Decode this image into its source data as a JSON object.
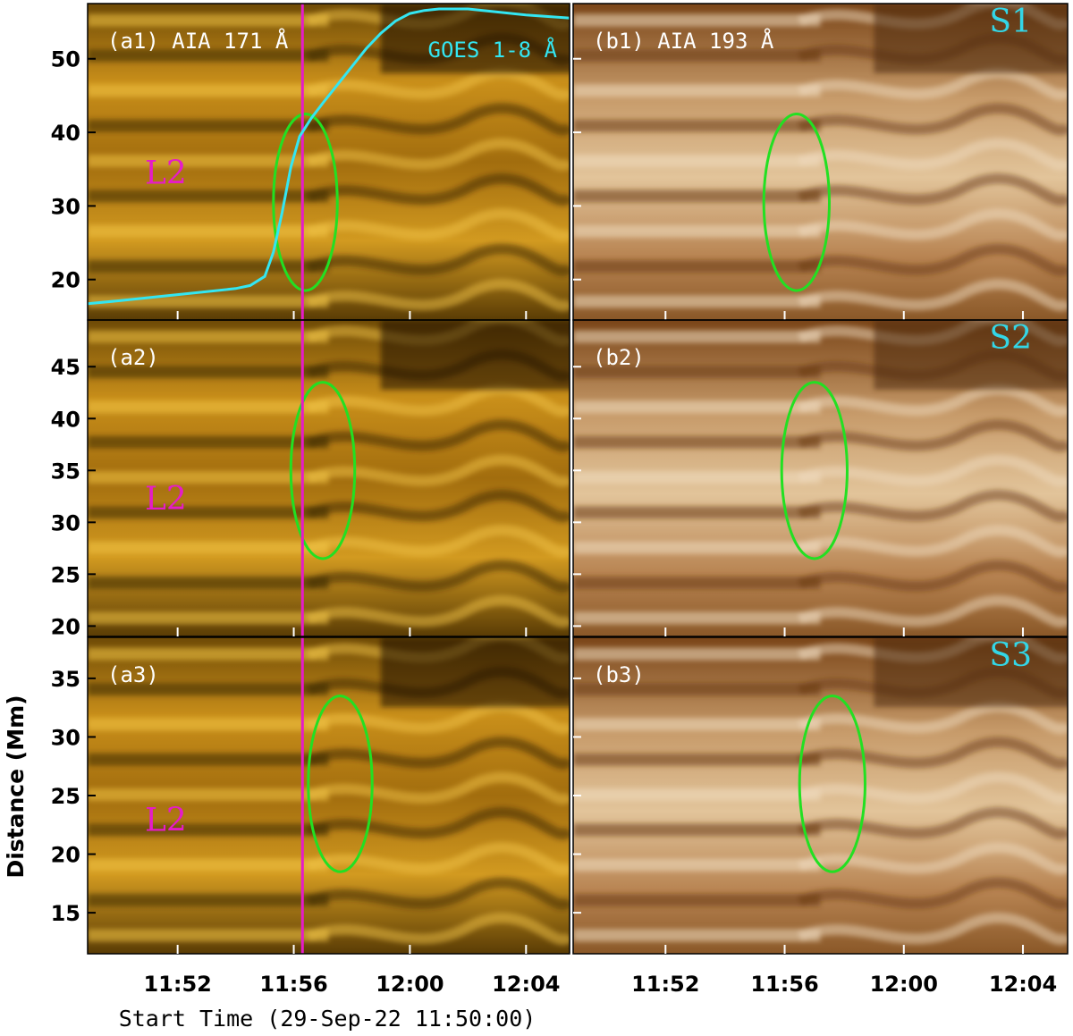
{
  "chart_data": {
    "type": "heatmap",
    "x_axis": {
      "title": "Start Time (29-Sep-22 11:50:00)",
      "ticks": [
        "11:52",
        "11:56",
        "12:00",
        "12:04"
      ],
      "tick_minutes": [
        2,
        6,
        10,
        14
      ],
      "range_minutes": [
        -1.1,
        15.5
      ]
    },
    "y_axis": {
      "title": "Distance (Mm)"
    },
    "event_line_minutes": 6.3,
    "colors": {
      "event_line": "#e51cc8",
      "goes_curve": "#33e6f2",
      "ellipse": "#22e022",
      "label_l2": "#e51cc8",
      "label_s": "#33d6e6",
      "panel_label": "#ffffff"
    },
    "panels": [
      {
        "label": "(a1) AIA 171 Å",
        "channel": "AIA 171 Å",
        "col": 0,
        "row": 0,
        "ylim": [
          14.5,
          57.5
        ],
        "yticks": [
          20,
          30,
          40,
          50
        ],
        "tag": "L2",
        "ellipse": {
          "t": 6.4,
          "d": 30.5,
          "dt": 1.1,
          "dd": 12
        },
        "goes_label": "GOES 1-8 Å"
      },
      {
        "label": "(b1) AIA 193 Å",
        "channel": "AIA 193 Å",
        "col": 1,
        "row": 0,
        "ylim": [
          14.5,
          57.5
        ],
        "yticks": [
          20,
          30,
          40,
          50
        ],
        "tag": "S1",
        "ellipse": {
          "t": 6.4,
          "d": 30.5,
          "dt": 1.1,
          "dd": 12
        }
      },
      {
        "label": "(a2)",
        "channel": "AIA 171 Å",
        "col": 0,
        "row": 1,
        "ylim": [
          19,
          49.5
        ],
        "yticks": [
          20,
          25,
          30,
          35,
          40,
          45
        ],
        "tag": "L2",
        "ellipse": {
          "t": 7.0,
          "d": 35,
          "dt": 1.1,
          "dd": 8.5
        }
      },
      {
        "label": "(b2)",
        "channel": "AIA 193 Å",
        "col": 1,
        "row": 1,
        "ylim": [
          19,
          49.5
        ],
        "yticks": [
          20,
          25,
          30,
          35,
          40,
          45
        ],
        "tag": "S2",
        "ellipse": {
          "t": 7.0,
          "d": 35,
          "dt": 1.1,
          "dd": 8.5
        }
      },
      {
        "label": "(a3)",
        "channel": "AIA 171 Å",
        "col": 0,
        "row": 2,
        "ylim": [
          11.5,
          38.5
        ],
        "yticks": [
          15,
          20,
          25,
          30,
          35
        ],
        "tag": "L2",
        "ellipse": {
          "t": 7.6,
          "d": 26,
          "dt": 1.1,
          "dd": 7.5
        }
      },
      {
        "label": "(b3)",
        "channel": "AIA 193 Å",
        "col": 1,
        "row": 2,
        "ylim": [
          11.5,
          38.5
        ],
        "yticks": [
          15,
          20,
          25,
          30,
          35
        ],
        "tag": "S3",
        "ellipse": {
          "t": 7.6,
          "d": 26,
          "dt": 1.1,
          "dd": 7.5
        }
      }
    ],
    "goes_curve": {
      "x_minutes": [
        -1.1,
        0,
        1,
        2,
        3,
        4,
        4.5,
        5.0,
        5.3,
        5.6,
        5.9,
        6.2,
        6.6,
        7.0,
        7.5,
        8.0,
        8.5,
        9.0,
        9.5,
        10.0,
        10.5,
        11.0,
        12,
        13,
        14,
        15.5
      ],
      "y_relative": [
        0.03,
        0.04,
        0.05,
        0.06,
        0.07,
        0.08,
        0.09,
        0.12,
        0.2,
        0.33,
        0.48,
        0.58,
        0.64,
        0.69,
        0.75,
        0.81,
        0.87,
        0.92,
        0.96,
        0.985,
        0.995,
        1.0,
        1.0,
        0.99,
        0.98,
        0.97
      ]
    }
  }
}
